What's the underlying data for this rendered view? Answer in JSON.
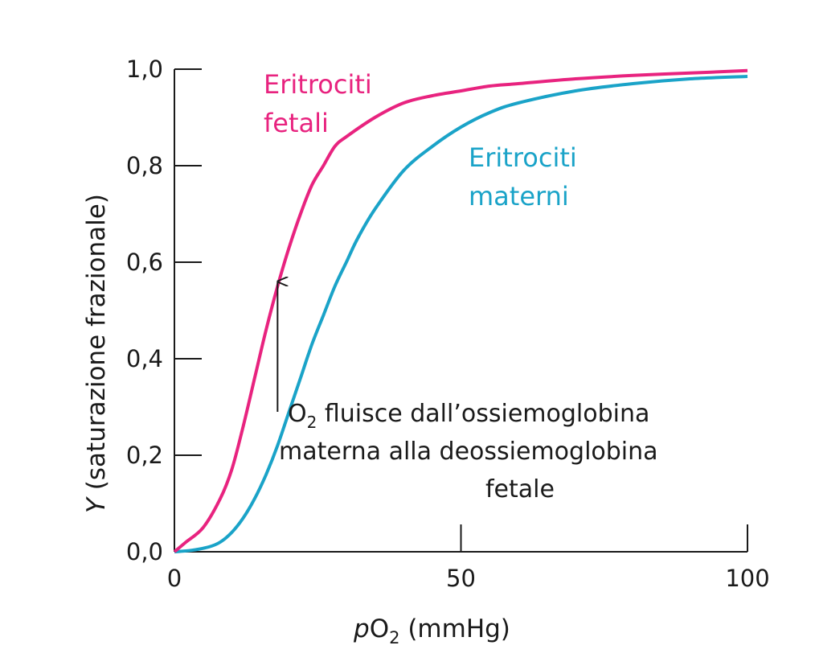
{
  "colors": {
    "fetal": "#e8237f",
    "maternal": "#1aa3c8",
    "axis": "#1a1a1a"
  },
  "chart_data": {
    "type": "line",
    "xlabel_italic": "p",
    "xlabel_o": "O",
    "xlabel_sub": "2",
    "xlabel_rest": " (mmHg)",
    "ylabel_italic": "Y",
    "ylabel_rest": " (saturazione frazionale)",
    "xlim": [
      0,
      100
    ],
    "ylim": [
      0,
      1.0
    ],
    "xticks": [
      {
        "value": 0,
        "label": "0"
      },
      {
        "value": 50,
        "label": "50"
      },
      {
        "value": 100,
        "label": "100"
      }
    ],
    "yticks": [
      {
        "value": 0.0,
        "label": "0,0"
      },
      {
        "value": 0.2,
        "label": "0,2"
      },
      {
        "value": 0.4,
        "label": "0,4"
      },
      {
        "value": 0.6,
        "label": "0,6"
      },
      {
        "value": 0.8,
        "label": "0,8"
      },
      {
        "value": 1.0,
        "label": "1,0"
      }
    ],
    "series": [
      {
        "key": "fetal",
        "label_lines": [
          "Eritrociti",
          "fetali"
        ],
        "x": [
          0,
          2,
          5,
          8,
          10,
          12,
          14,
          16,
          18,
          20,
          22,
          24,
          26,
          28,
          30,
          35,
          40,
          45,
          50,
          55,
          60,
          70,
          80,
          90,
          100
        ],
        "y": [
          0,
          0.02,
          0.05,
          0.11,
          0.17,
          0.26,
          0.36,
          0.46,
          0.55,
          0.63,
          0.7,
          0.76,
          0.8,
          0.84,
          0.86,
          0.9,
          0.93,
          0.945,
          0.955,
          0.965,
          0.97,
          0.98,
          0.987,
          0.992,
          0.997
        ]
      },
      {
        "key": "maternal",
        "label_lines": [
          "Eritrociti",
          "materni"
        ],
        "x": [
          0,
          3,
          6,
          8,
          10,
          12,
          14,
          16,
          18,
          20,
          22,
          24,
          26,
          28,
          30,
          32,
          35,
          40,
          45,
          50,
          55,
          60,
          70,
          80,
          90,
          100
        ],
        "y": [
          0,
          0.003,
          0.01,
          0.02,
          0.04,
          0.07,
          0.11,
          0.16,
          0.22,
          0.29,
          0.36,
          0.43,
          0.49,
          0.55,
          0.6,
          0.65,
          0.71,
          0.79,
          0.84,
          0.88,
          0.91,
          0.93,
          0.955,
          0.97,
          0.98,
          0.985
        ]
      }
    ],
    "arrow": {
      "x": 18,
      "y_from": 0.29,
      "y_to": 0.56
    },
    "annotation": {
      "o": "O",
      "sub": "2",
      "line1_rest": " fluisce dall’ossiemoglobina",
      "line2": "materna alla deossiemoglobina",
      "line3": "fetale"
    }
  }
}
